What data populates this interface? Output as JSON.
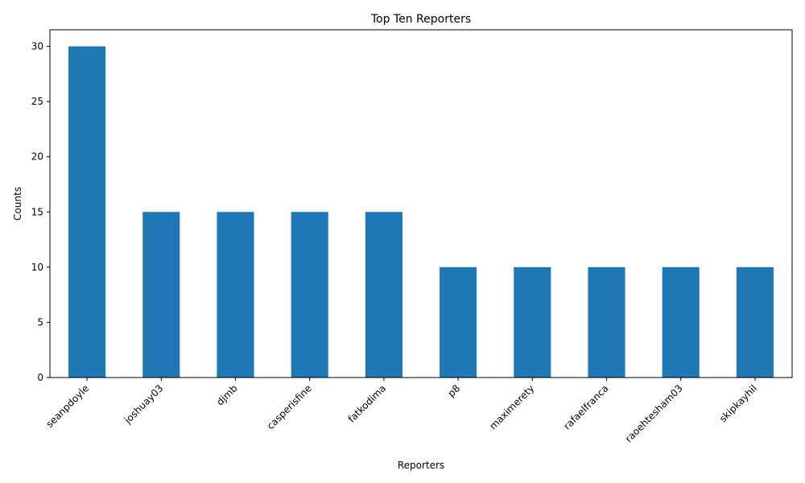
{
  "chart_data": {
    "type": "bar",
    "title": "Top Ten Reporters",
    "xlabel": "Reporters",
    "ylabel": "Counts",
    "categories": [
      "seanpdoyle",
      "joshuay03",
      "djmb",
      "casperisfine",
      "fatkodima",
      "p8",
      "maximerety",
      "rafaelfranca",
      "raoehtesham03",
      "skipkayhil"
    ],
    "values": [
      30,
      15,
      15,
      15,
      15,
      10,
      10,
      10,
      10,
      10
    ],
    "ylim": [
      0,
      31.5
    ],
    "yticks": [
      0,
      5,
      10,
      15,
      20,
      25,
      30
    ],
    "bar_color": "#1f77b4",
    "grid": false,
    "legend": "none"
  }
}
